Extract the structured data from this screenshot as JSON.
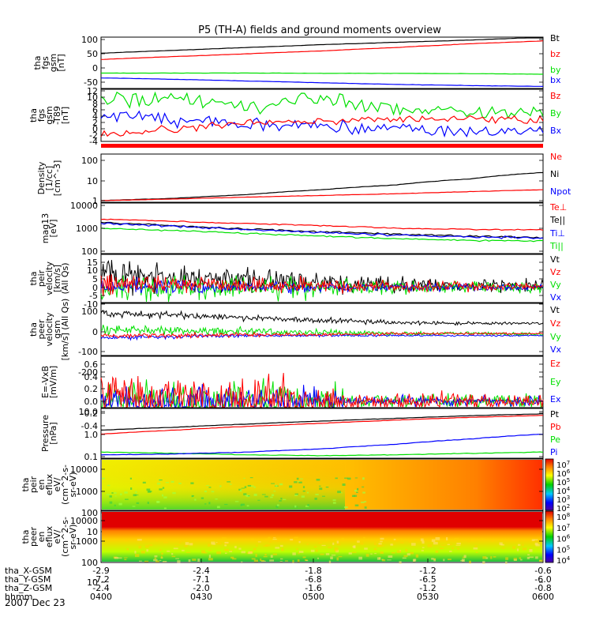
{
  "title": "P5 (TH-A) fields and ground moments overview",
  "colors": {
    "black": "#000000",
    "red": "#ff0000",
    "green": "#00e000",
    "blue": "#0000ff"
  },
  "x_ticks": [
    "0400",
    "0430",
    "0500",
    "0530",
    "0600"
  ],
  "footer": {
    "rows": [
      {
        "label": "tha_X-GSM",
        "values": [
          "-2.9",
          "-2.4",
          "-1.8",
          "-1.2",
          "-0.6"
        ]
      },
      {
        "label": "tha_Y-GSM",
        "values": [
          "-7.2",
          "-7.1",
          "-6.8",
          "-6.5",
          "-6.0"
        ]
      },
      {
        "label": "tha_Z-GSM",
        "values": [
          "-2.4",
          "-2.0",
          "-1.6",
          "-1.2",
          "-0.8"
        ]
      },
      {
        "label": "hhmm",
        "values": []
      }
    ],
    "date": "2007 Dec 23"
  },
  "chart_data": [
    {
      "type": "line",
      "ylabel": [
        "tha",
        "fgs",
        "gsm",
        "[nT]"
      ],
      "ticks": [
        "100",
        "50",
        "0",
        "-50"
      ],
      "series": [
        {
          "name": "Bt",
          "color": "black",
          "values": [
            52,
            62,
            72,
            82,
            90,
            98,
            108
          ]
        },
        {
          "name": "bz",
          "color": "red",
          "values": [
            30,
            40,
            50,
            60,
            72,
            85,
            95
          ]
        },
        {
          "name": "by",
          "color": "green",
          "values": [
            -18,
            -18,
            -18,
            -19,
            -19,
            -20,
            -22
          ]
        },
        {
          "name": "bx",
          "color": "blue",
          "values": [
            -35,
            -40,
            -46,
            -52,
            -58,
            -62,
            -65
          ]
        }
      ]
    },
    {
      "type": "line",
      "ylabel": [
        "tha",
        "fgs",
        "gsm",
        "-T89",
        "[nT]"
      ],
      "ticks": [
        "12",
        "10",
        "8",
        "6",
        "4",
        "2",
        "0",
        "-2",
        "-4"
      ],
      "series": [
        {
          "name": "Bz",
          "color": "red",
          "values": [
            -2,
            0,
            2,
            2.5,
            3,
            3,
            2.5
          ]
        },
        {
          "name": "By",
          "color": "green",
          "values": [
            9,
            10,
            7.5,
            10,
            6.5,
            5.5,
            6
          ]
        },
        {
          "name": "Bx",
          "color": "blue",
          "values": [
            4,
            3,
            1.5,
            0.5,
            0,
            -1,
            -0.5
          ]
        }
      ]
    },
    {
      "type": "line",
      "ylabel": [
        "Density",
        "[1/cc]",
        "[cm^-3]"
      ],
      "ticks": [
        "100",
        "10",
        "1"
      ],
      "scale": "log",
      "series": [
        {
          "name": "Ne",
          "color": "red",
          "values": [
            1.0,
            1.2,
            1.5,
            1.8,
            2.2,
            2.8,
            3.5
          ]
        },
        {
          "name": "Ni",
          "color": "black",
          "values": [
            1.0,
            1.3,
            2,
            3.5,
            6,
            12,
            25
          ]
        },
        {
          "name": "Npot",
          "color": "blue",
          "values": []
        }
      ]
    },
    {
      "type": "line",
      "ylabel": [
        "mag13",
        "[eV]"
      ],
      "ticks": [
        "10000",
        "1000",
        "100"
      ],
      "scale": "log",
      "series": [
        {
          "name": "Te⊥",
          "color": "red",
          "values": [
            2500,
            2000,
            1600,
            1300,
            1000,
            900,
            850
          ]
        },
        {
          "name": "Te||",
          "color": "black",
          "values": [
            1800,
            1300,
            900,
            700,
            550,
            450,
            400
          ]
        },
        {
          "name": "Ti⊥",
          "color": "blue",
          "values": [
            1600,
            1200,
            850,
            650,
            500,
            420,
            380
          ]
        },
        {
          "name": "Ti||",
          "color": "green",
          "values": [
            1000,
            800,
            600,
            450,
            350,
            300,
            280
          ]
        }
      ]
    },
    {
      "type": "line",
      "ylabel": [
        "tha",
        "peir",
        "velocity",
        "[km/s]",
        "(All Qs)"
      ],
      "ticks": [
        "15",
        "10",
        "5",
        "0",
        "-5",
        "-10"
      ],
      "series": [
        {
          "name": "Vt",
          "color": "black",
          "values": [
            8,
            6,
            4,
            2.5,
            1.5,
            1,
            1
          ]
        },
        {
          "name": "Vz",
          "color": "red",
          "values": [
            2,
            1.5,
            1,
            0.8,
            0.5,
            0.3,
            0.3
          ]
        },
        {
          "name": "Vy",
          "color": "green",
          "values": [
            -1,
            0,
            0,
            0,
            0,
            0,
            0
          ]
        },
        {
          "name": "Vx",
          "color": "blue",
          "values": [
            0,
            0,
            0,
            0,
            0,
            0,
            0
          ]
        }
      ]
    },
    {
      "type": "line",
      "ylabel": [
        "tha",
        "peer",
        "velocity",
        "gsm",
        "[km/s] (All Qs)"
      ],
      "ticks": [
        "100",
        "0",
        "-100",
        "-200"
      ],
      "series": [
        {
          "name": "Vt",
          "color": "black",
          "values": [
            90,
            80,
            70,
            55,
            45,
            40,
            40
          ]
        },
        {
          "name": "Vz",
          "color": "red",
          "values": [
            -20,
            -20,
            -15,
            -15,
            -10,
            -10,
            -10
          ]
        },
        {
          "name": "Vy",
          "color": "green",
          "values": [
            10,
            5,
            0,
            -5,
            -10,
            -10,
            -15
          ]
        },
        {
          "name": "Vx",
          "color": "blue",
          "values": [
            -30,
            -25,
            -20,
            -20,
            -20,
            -20,
            -20
          ]
        }
      ]
    },
    {
      "type": "line",
      "ylabel": [
        "E=-VxB",
        "[mV/m]"
      ],
      "ticks": [
        "0.6",
        "0.4",
        "0.2",
        "0.0",
        "-0.2",
        "-0.4"
      ],
      "series": [
        {
          "name": "Ez",
          "color": "red",
          "values": [
            0,
            0,
            0,
            0,
            0,
            0,
            0
          ]
        },
        {
          "name": "Ey",
          "color": "green",
          "values": [
            0,
            0,
            0,
            0,
            0,
            0,
            0
          ]
        },
        {
          "name": "Ex",
          "color": "blue",
          "values": [
            0,
            0,
            0,
            0,
            0,
            0,
            0
          ]
        }
      ]
    },
    {
      "type": "line",
      "ylabel": [
        "Pressure",
        "[nPa]"
      ],
      "ticks": [
        "10.0",
        "1.0",
        "0.1"
      ],
      "scale": "log",
      "series": [
        {
          "name": "Pt",
          "color": "black",
          "values": [
            1.5,
            2.0,
            2.8,
            3.8,
            5,
            6.5,
            8
          ]
        },
        {
          "name": "Pb",
          "color": "red",
          "values": [
            1.0,
            1.5,
            2.2,
            3.0,
            4.2,
            5.5,
            6.8
          ]
        },
        {
          "name": "Pe",
          "color": "green",
          "values": [
            0.16,
            0.14,
            0.12,
            0.11,
            0.12,
            0.14,
            0.16
          ]
        },
        {
          "name": "Pi",
          "color": "blue",
          "values": [
            0.12,
            0.13,
            0.16,
            0.22,
            0.35,
            0.6,
            1.0
          ]
        }
      ]
    },
    {
      "type": "heatmap",
      "ylabel": [
        "tha",
        "peir",
        "en",
        "eflux",
        "eV/",
        "(cm^2-s-",
        "sr-eV)"
      ],
      "ticks": [
        "10000",
        "1000",
        "100",
        "10"
      ],
      "colorbar_ticks": [
        "10^7",
        "10^6",
        "10^5",
        "10^4",
        "10^3",
        "10^2"
      ]
    },
    {
      "type": "heatmap",
      "ylabel": [
        "tha",
        "peer",
        "en",
        "eflux",
        "eV/",
        "(cm^2-s-",
        "sr-eV)"
      ],
      "ticks": [
        "10000",
        "1000",
        "100",
        "10"
      ],
      "colorbar_ticks": [
        "10^8",
        "10^7",
        "10^6",
        "10^5",
        "10^4"
      ]
    }
  ]
}
